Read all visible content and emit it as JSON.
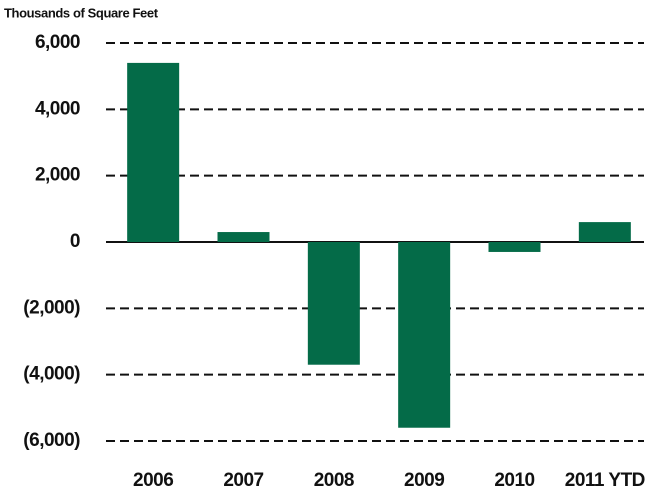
{
  "chart_data": {
    "type": "bar",
    "y_axis_label": "Thousands of Square Feet",
    "categories": [
      "2006",
      "2007",
      "2008",
      "2009",
      "2010",
      "2011 YTD"
    ],
    "values": [
      5400,
      300,
      -3700,
      -5600,
      -300,
      600
    ],
    "color": "#046b48",
    "ylim": [
      -6000,
      6000
    ],
    "yticks": [
      {
        "value": -6000,
        "label": "(6,000)"
      },
      {
        "value": -4000,
        "label": "(4,000)"
      },
      {
        "value": -2000,
        "label": "(2,000)"
      },
      0,
      {
        "value": 2000,
        "label": "2,000"
      },
      {
        "value": 4000,
        "label": "4,000"
      },
      {
        "value": 6000,
        "label": "6,000"
      }
    ],
    "grid": true
  }
}
